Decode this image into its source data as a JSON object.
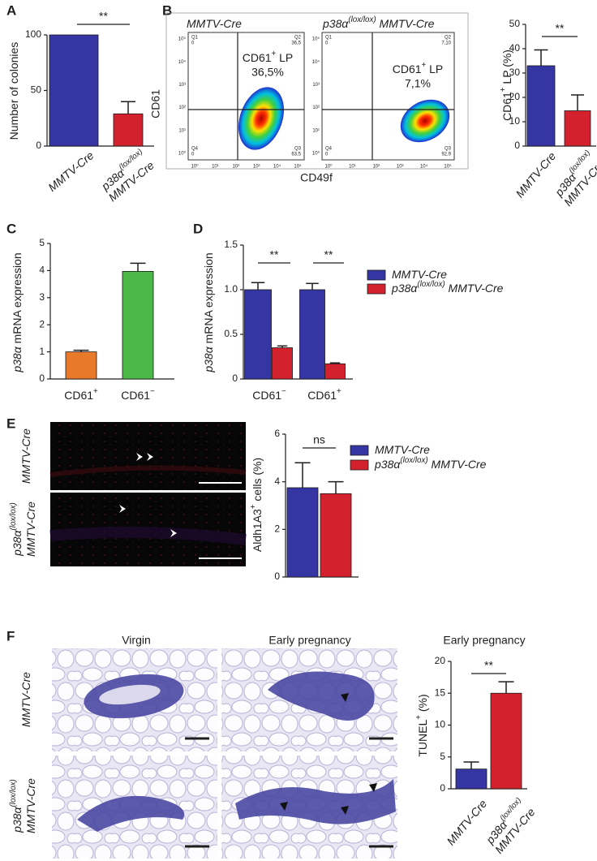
{
  "panel_labels": [
    "A",
    "B",
    "C",
    "D",
    "E",
    "F"
  ],
  "flow": {
    "y_label": "CD61",
    "x_label": "CD49f",
    "axis_ticks": [
      "10⁰",
      "10¹",
      "10²",
      "10³",
      "10⁴",
      "10⁵"
    ],
    "plots": [
      {
        "title": [
          "MMTV-Cre"
        ],
        "gate": [
          "CD61",
          "+",
          " LP"
        ],
        "gate_value": "36,5%",
        "quadrants": [
          [
            "Q1",
            "0"
          ],
          [
            "Q2",
            "36,5"
          ],
          [
            "Q3",
            "63,5"
          ],
          [
            "Q4",
            "0"
          ]
        ]
      },
      {
        "title": [
          "p38α",
          "(lox/lox)",
          " MMTV-Cre"
        ],
        "gate": [
          "CD61",
          "+",
          " LP"
        ],
        "gate_value": "7,1%",
        "quadrants": [
          [
            "Q1",
            "0"
          ],
          [
            "Q2",
            "7,10"
          ],
          [
            "Q3",
            "92,9"
          ],
          [
            "Q4",
            "0"
          ]
        ]
      }
    ]
  },
  "images_e": {
    "rows": [
      [
        "MMTV-Cre"
      ],
      [
        "p38α",
        "(lox/lox)",
        "MMTV-Cre"
      ]
    ]
  },
  "images_f": {
    "columns": [
      "Virgin",
      "Early pregnancy"
    ],
    "rows": [
      [
        "MMTV-Cre"
      ],
      [
        "p38α",
        "(lox/lox)",
        "MMTV-Cre"
      ]
    ]
  },
  "chart_data": [
    {
      "type": "bar",
      "ylabel": [
        "Number of colonies"
      ],
      "categories": [
        [
          "MMTV-Cre"
        ],
        [
          "p38α",
          "(lox/lox)",
          "MMTV-Cre"
        ]
      ],
      "values": [
        100,
        29
      ],
      "errors": [
        null,
        11
      ],
      "colors": [
        "#3535a3",
        "#d3222e"
      ],
      "ylim": [
        0,
        100
      ],
      "yticks": [
        0,
        50,
        100
      ],
      "annotations": [
        "**"
      ]
    },
    {
      "type": "bar",
      "ylabel": [
        "CD61",
        "+",
        " LP (%)"
      ],
      "categories": [
        [
          "MMTV-Cre"
        ],
        [
          "p38α",
          "(lox/lox)",
          "MMTV-Cre"
        ]
      ],
      "values": [
        33,
        14.5
      ],
      "errors": [
        6.5,
        6.5
      ],
      "colors": [
        "#3535a3",
        "#d3222e"
      ],
      "ylim": [
        0,
        50
      ],
      "yticks": [
        0,
        10,
        20,
        30,
        40,
        50
      ],
      "annotations": [
        "**"
      ]
    },
    {
      "type": "bar",
      "ylabel": [
        "p38α",
        " mRNA expression"
      ],
      "categories": [
        [
          "CD61",
          "+"
        ],
        [
          "CD61",
          "−"
        ]
      ],
      "values": [
        1,
        3.97
      ],
      "errors": [
        0.06,
        0.3
      ],
      "colors": [
        "#e8782a",
        "#4cb848"
      ],
      "ylim": [
        0,
        5
      ],
      "yticks": [
        0,
        1,
        2,
        3,
        4,
        5
      ]
    },
    {
      "type": "bar",
      "ylabel": [
        "p38α",
        " mRNA expression"
      ],
      "categories": [
        [
          "CD61",
          "−"
        ],
        [
          "CD61",
          "+"
        ]
      ],
      "series": [
        {
          "name": [
            "MMTV-Cre"
          ],
          "color": "#3535a3",
          "values": [
            1,
            1
          ],
          "errors": [
            0.08,
            0.07
          ]
        },
        {
          "name": [
            "p38α",
            "(lox/lox)",
            " MMTV-Cre"
          ],
          "color": "#d3222e",
          "values": [
            0.35,
            0.17
          ],
          "errors": [
            0.02,
            0.01
          ]
        }
      ],
      "ylim": [
        0,
        1.5
      ],
      "yticks": [
        0,
        0.5,
        {
          "value": 1,
          "label": "1.0"
        },
        1.5
      ],
      "annotations": [
        "**",
        "**"
      ]
    },
    {
      "type": "bar",
      "ylabel": [
        "Aldh1A3",
        "+",
        " cells (%)"
      ],
      "categories": [
        null
      ],
      "series": [
        {
          "name": [
            "MMTV-Cre"
          ],
          "color": "#3535a3",
          "values": [
            3.75
          ],
          "errors": [
            1.05
          ]
        },
        {
          "name": [
            "p38α",
            "(lox/lox)",
            " MMTV-Cre"
          ],
          "color": "#d3222e",
          "values": [
            3.5
          ],
          "errors": [
            0.5
          ]
        }
      ],
      "ylim": [
        0,
        6
      ],
      "yticks": [
        0,
        2,
        4,
        6
      ],
      "annotations": [
        "ns"
      ]
    },
    {
      "type": "bar",
      "title": "Early pregnancy",
      "ylabel": [
        "TUNEL",
        "+",
        " (%)"
      ],
      "categories": [
        [
          "MMTV-Cre"
        ],
        [
          "p38α",
          "(lox/lox)",
          "MMTV-Cre"
        ]
      ],
      "values": [
        3.1,
        15
      ],
      "errors": [
        1.1,
        1.8
      ],
      "colors": [
        "#3535a3",
        "#d3222e"
      ],
      "ylim": [
        0,
        20
      ],
      "yticks": [
        0,
        5,
        10,
        15,
        20
      ],
      "annotations": [
        "**"
      ]
    }
  ]
}
